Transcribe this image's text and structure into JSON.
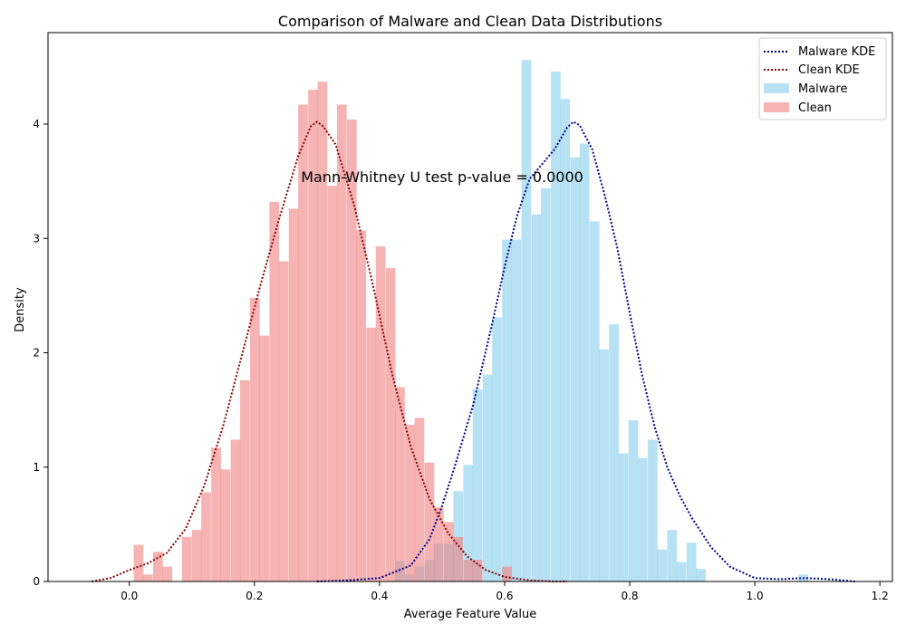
{
  "chart_data": {
    "type": "histogram",
    "title": "Comparison of Malware and Clean Data Distributions",
    "xlabel": "Average Feature Value",
    "ylabel": "Density",
    "xlim": [
      -0.13,
      1.22
    ],
    "ylim": [
      0,
      4.8
    ],
    "xticks": [
      "0.0",
      "0.2",
      "0.4",
      "0.6",
      "0.8",
      "1.0",
      "1.2"
    ],
    "yticks": [
      "0",
      "1",
      "2",
      "3",
      "4"
    ],
    "annotation": "Mann-Whitney U test p-value = 0.0000",
    "legend_position": "top-right",
    "legend": [
      "Malware KDE",
      "Clean KDE",
      "Malware",
      "Clean"
    ],
    "colors": {
      "malware_bar": "#87ceeb",
      "clean_bar": "#f08080",
      "malware_kde": "#00008b",
      "clean_kde": "#8b0000"
    },
    "series": [
      {
        "name": "Malware",
        "bin_width": 0.0155,
        "bins": [
          [
            0.425,
            0.18
          ],
          [
            0.44,
            0.06
          ],
          [
            0.456,
            0.13
          ],
          [
            0.472,
            0.19
          ],
          [
            0.487,
            0.33
          ],
          [
            0.503,
            0.33
          ],
          [
            0.518,
            0.79
          ],
          [
            0.534,
            1.02
          ],
          [
            0.549,
            1.68
          ],
          [
            0.565,
            1.81
          ],
          [
            0.58,
            2.31
          ],
          [
            0.596,
            2.99
          ],
          [
            0.611,
            2.99
          ],
          [
            0.627,
            4.56
          ],
          [
            0.643,
            3.21
          ],
          [
            0.658,
            3.44
          ],
          [
            0.674,
            4.46
          ],
          [
            0.689,
            4.22
          ],
          [
            0.705,
            3.71
          ],
          [
            0.72,
            3.83
          ],
          [
            0.736,
            3.15
          ],
          [
            0.751,
            2.03
          ],
          [
            0.767,
            2.25
          ],
          [
            0.782,
            1.12
          ],
          [
            0.798,
            1.41
          ],
          [
            0.813,
            1.08
          ],
          [
            0.829,
            1.24
          ],
          [
            0.844,
            0.28
          ],
          [
            0.86,
            0.45
          ],
          [
            0.875,
            0.17
          ],
          [
            0.891,
            0.34
          ],
          [
            0.906,
            0.11
          ],
          [
            1.07,
            0.06
          ]
        ]
      },
      {
        "name": "Clean",
        "bin_width": 0.0155,
        "bins": [
          [
            0.007,
            0.32
          ],
          [
            0.022,
            0.06
          ],
          [
            0.038,
            0.26
          ],
          [
            0.053,
            0.13
          ],
          [
            0.084,
            0.39
          ],
          [
            0.1,
            0.45
          ],
          [
            0.115,
            0.78
          ],
          [
            0.131,
            1.17
          ],
          [
            0.146,
            0.98
          ],
          [
            0.162,
            1.24
          ],
          [
            0.177,
            1.76
          ],
          [
            0.193,
            2.48
          ],
          [
            0.208,
            2.15
          ],
          [
            0.224,
            3.32
          ],
          [
            0.239,
            2.8
          ],
          [
            0.255,
            3.26
          ],
          [
            0.27,
            4.17
          ],
          [
            0.286,
            4.3
          ],
          [
            0.301,
            4.37
          ],
          [
            0.317,
            3.46
          ],
          [
            0.332,
            4.17
          ],
          [
            0.348,
            4.04
          ],
          [
            0.363,
            3.07
          ],
          [
            0.379,
            2.22
          ],
          [
            0.394,
            2.93
          ],
          [
            0.41,
            2.74
          ],
          [
            0.425,
            1.7
          ],
          [
            0.441,
            1.37
          ],
          [
            0.456,
            1.43
          ],
          [
            0.472,
            1.04
          ],
          [
            0.487,
            0.65
          ],
          [
            0.503,
            0.52
          ],
          [
            0.518,
            0.39
          ],
          [
            0.534,
            0.19
          ],
          [
            0.549,
            0.19
          ],
          [
            0.596,
            0.13
          ]
        ]
      }
    ],
    "kde": [
      {
        "name": "Malware KDE",
        "x": [
          0.3,
          0.35,
          0.4,
          0.45,
          0.48,
          0.5,
          0.52,
          0.55,
          0.58,
          0.6,
          0.62,
          0.64,
          0.66,
          0.68,
          0.7,
          0.71,
          0.72,
          0.74,
          0.76,
          0.78,
          0.8,
          0.82,
          0.84,
          0.86,
          0.88,
          0.9,
          0.93,
          0.96,
          1.0,
          1.04,
          1.08,
          1.12,
          1.16
        ],
        "y": [
          0.0,
          0.01,
          0.03,
          0.14,
          0.37,
          0.66,
          1.0,
          1.55,
          2.25,
          2.75,
          3.2,
          3.52,
          3.65,
          3.78,
          3.97,
          4.02,
          3.99,
          3.78,
          3.38,
          2.92,
          2.35,
          1.8,
          1.35,
          1.0,
          0.75,
          0.55,
          0.3,
          0.13,
          0.03,
          0.02,
          0.03,
          0.02,
          0.0
        ]
      },
      {
        "name": "Clean KDE",
        "x": [
          -0.06,
          -0.03,
          0.0,
          0.03,
          0.06,
          0.09,
          0.12,
          0.15,
          0.18,
          0.21,
          0.24,
          0.27,
          0.29,
          0.3,
          0.31,
          0.33,
          0.36,
          0.39,
          0.42,
          0.45,
          0.48,
          0.51,
          0.54,
          0.57,
          0.6,
          0.64,
          0.68,
          0.7
        ],
        "y": [
          0.0,
          0.03,
          0.1,
          0.16,
          0.25,
          0.46,
          0.84,
          1.36,
          1.98,
          2.6,
          3.18,
          3.72,
          3.98,
          4.02,
          3.98,
          3.82,
          3.28,
          2.58,
          1.82,
          1.18,
          0.72,
          0.42,
          0.22,
          0.1,
          0.04,
          0.01,
          0.0,
          0.0
        ]
      }
    ]
  }
}
